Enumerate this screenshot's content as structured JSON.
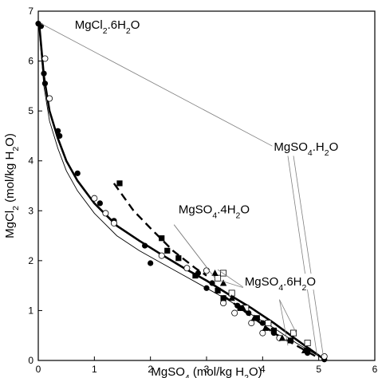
{
  "chart_data": {
    "type": "scatter",
    "xlabel_parts": [
      "MgSO",
      "4",
      " (mol/kg H",
      "2",
      "O)"
    ],
    "ylabel_parts": [
      "MgCl",
      "2",
      " (mol/kg H",
      "2",
      "O)"
    ],
    "xlim": [
      0,
      6
    ],
    "ylim": [
      0,
      7
    ],
    "xticks": [
      0,
      1,
      2,
      3,
      4,
      5,
      6
    ],
    "yticks": [
      0,
      1,
      2,
      3,
      4,
      5,
      6,
      7
    ],
    "grid": false,
    "annotations": [
      {
        "id": "mgcl2-6h2o",
        "parts": [
          "MgCl",
          "2",
          ".6H",
          "2",
          "O"
        ],
        "x": 0.65,
        "y": 6.65
      },
      {
        "id": "mgso4-h2o",
        "parts": [
          "MgSO",
          "4",
          ".H",
          "2",
          "O"
        ],
        "x": 4.2,
        "y": 4.2
      },
      {
        "id": "mgso4-4h2o",
        "parts": [
          "MgSO",
          "4",
          ".4H",
          "2",
          "O"
        ],
        "x": 2.5,
        "y": 2.95
      },
      {
        "id": "mgso4-6h2o",
        "parts": [
          "MgSO",
          "4",
          ".6H",
          "2",
          "O"
        ],
        "x": 3.68,
        "y": 1.5
      }
    ],
    "leader_lines": [
      {
        "from": [
          0.05,
          6.75
        ],
        "to": [
          4.25,
          4.25
        ]
      },
      {
        "from": [
          4.55,
          4.1
        ],
        "to": [
          5.08,
          0.1
        ]
      },
      {
        "from": [
          4.45,
          4.1
        ],
        "to": [
          4.97,
          0.1
        ]
      },
      {
        "from": [
          2.42,
          2.72
        ],
        "to": [
          3.05,
          1.8
        ]
      },
      {
        "from": [
          2.42,
          2.72
        ],
        "to": [
          3.15,
          1.65
        ]
      },
      {
        "from": [
          3.68,
          1.45
        ],
        "to": [
          3.25,
          1.6
        ]
      },
      {
        "from": [
          3.68,
          1.45
        ],
        "to": [
          3.2,
          1.82
        ]
      },
      {
        "from": [
          4.3,
          1.22
        ],
        "to": [
          4.6,
          0.55
        ]
      },
      {
        "from": [
          4.3,
          1.22
        ],
        "to": [
          4.45,
          0.3
        ]
      }
    ],
    "series": [
      {
        "kind": "thick-line",
        "x": [
          0.02,
          0.1,
          0.2,
          0.35,
          0.5,
          0.7,
          1.0,
          1.4,
          1.8,
          2.2,
          2.6,
          3.0,
          3.4,
          3.8,
          4.2,
          4.6,
          5.1
        ],
        "y": [
          6.7,
          5.7,
          5.0,
          4.45,
          4.0,
          3.6,
          3.15,
          2.7,
          2.4,
          2.12,
          1.85,
          1.6,
          1.32,
          1.05,
          0.75,
          0.42,
          0.02
        ]
      },
      {
        "kind": "thin-line",
        "x": [
          0.02,
          0.1,
          0.2,
          0.35,
          0.5,
          0.7,
          1.0,
          1.4,
          1.8,
          2.2,
          2.6,
          3.0,
          3.4,
          3.8,
          4.2,
          4.6,
          5.1
        ],
        "y": [
          6.6,
          5.5,
          4.8,
          4.25,
          3.8,
          3.4,
          2.95,
          2.5,
          2.2,
          1.95,
          1.7,
          1.45,
          1.2,
          0.92,
          0.65,
          0.35,
          0.02
        ]
      },
      {
        "kind": "dashed-line",
        "x": [
          1.35,
          1.7,
          2.0,
          2.4,
          2.8,
          3.0
        ],
        "y": [
          3.55,
          3.0,
          2.65,
          2.2,
          1.85,
          1.7
        ]
      },
      {
        "kind": "dashed-line",
        "x": [
          3.3,
          3.6,
          3.9,
          4.2,
          4.6,
          5.0
        ],
        "y": [
          1.3,
          1.05,
          0.8,
          0.55,
          0.3,
          0.05
        ]
      },
      {
        "kind": "filled-circle",
        "x": [
          0.0,
          0.05,
          0.1,
          0.12,
          0.35,
          0.38,
          0.7,
          1.1,
          1.35,
          1.9,
          2.0,
          2.85,
          3.0,
          3.1,
          3.3,
          3.55,
          3.75,
          4.0,
          4.2,
          4.5,
          4.8,
          5.1
        ],
        "y": [
          6.75,
          6.7,
          5.75,
          5.55,
          4.6,
          4.5,
          3.75,
          3.15,
          2.8,
          2.3,
          1.95,
          1.75,
          1.45,
          1.55,
          1.2,
          1.1,
          0.95,
          0.75,
          0.55,
          0.4,
          0.15,
          0.02
        ]
      },
      {
        "kind": "open-circle",
        "x": [
          0.12,
          0.2,
          1.0,
          1.2,
          1.35,
          2.2,
          2.65,
          3.0,
          3.3,
          3.5,
          3.8,
          4.0,
          4.3,
          4.8,
          5.1
        ],
        "y": [
          6.05,
          5.25,
          3.25,
          2.95,
          2.75,
          2.1,
          1.85,
          1.8,
          1.15,
          0.95,
          0.75,
          0.55,
          0.45,
          0.2,
          0.08
        ]
      },
      {
        "kind": "filled-square",
        "x": [
          1.45,
          2.2,
          2.3,
          2.5,
          2.8,
          3.2,
          3.3,
          3.6,
          3.9,
          4.2,
          4.5,
          4.8
        ],
        "y": [
          3.55,
          2.45,
          2.2,
          2.05,
          1.7,
          1.4,
          1.25,
          1.05,
          0.85,
          0.6,
          0.4,
          0.2
        ]
      },
      {
        "kind": "open-square",
        "x": [
          3.2,
          3.3,
          3.45,
          3.7,
          4.1,
          4.55,
          4.8
        ],
        "y": [
          1.65,
          1.75,
          1.35,
          1.05,
          0.75,
          0.55,
          0.35
        ]
      },
      {
        "kind": "filled-triangle",
        "x": [
          3.15,
          3.3,
          3.45,
          3.65,
          3.85,
          4.05,
          4.35,
          4.75
        ],
        "y": [
          1.75,
          1.55,
          1.25,
          1.05,
          0.85,
          0.65,
          0.45,
          0.2
        ]
      }
    ]
  }
}
